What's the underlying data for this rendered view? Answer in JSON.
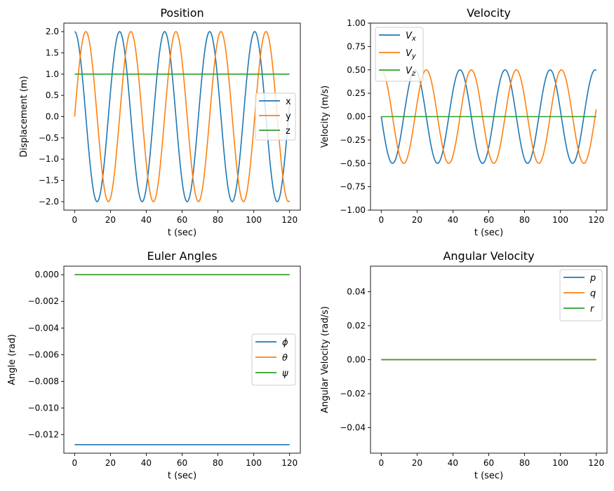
{
  "chart_data": [
    {
      "type": "line",
      "title": "Position",
      "xlabel": "t (sec)",
      "ylabel": "Displacement (m)",
      "xlim": [
        -6,
        126
      ],
      "ylim": [
        -2.2,
        2.2
      ],
      "xticks": [
        0,
        20,
        40,
        60,
        80,
        100,
        120
      ],
      "yticks": [
        -2.0,
        -1.5,
        -1.0,
        -0.5,
        0.0,
        0.5,
        1.0,
        1.5,
        2.0
      ],
      "ytick_labels": [
        "−2.0",
        "−1.5",
        "−1.0",
        "−0.5",
        "0.0",
        "0.5",
        "1.0",
        "1.5",
        "2.0"
      ],
      "grid": false,
      "legend_position": "center-right",
      "series": [
        {
          "name": "x",
          "color": "#1f77b4",
          "formula": "2*cos(w*t)",
          "angular_frequency_rad_per_s": 0.25,
          "t_range": [
            0,
            120
          ]
        },
        {
          "name": "y",
          "color": "#ff7f0e",
          "formula": "2*sin(w*t)",
          "angular_frequency_rad_per_s": 0.25,
          "t_range": [
            0,
            120
          ]
        },
        {
          "name": "z",
          "color": "#2ca02c",
          "formula": "1",
          "t_range": [
            0,
            120
          ]
        }
      ]
    },
    {
      "type": "line",
      "title": "Velocity",
      "xlabel": "t (sec)",
      "ylabel": "Velocity (m/s)",
      "xlim": [
        -6,
        126
      ],
      "ylim": [
        -1.0,
        1.0
      ],
      "xticks": [
        0,
        20,
        40,
        60,
        80,
        100,
        120
      ],
      "yticks": [
        -1.0,
        -0.75,
        -0.5,
        -0.25,
        0.0,
        0.25,
        0.5,
        0.75,
        1.0
      ],
      "ytick_labels": [
        "−1.00",
        "−0.75",
        "−0.50",
        "−0.25",
        "0.00",
        "0.25",
        "0.50",
        "0.75",
        "1.00"
      ],
      "grid": false,
      "legend_position": "upper-left",
      "series": [
        {
          "name": "V",
          "subscript": "x",
          "color": "#1f77b4",
          "formula": "-0.5*sin(w*t)",
          "angular_frequency_rad_per_s": 0.25,
          "t_range": [
            0,
            120
          ]
        },
        {
          "name": "V",
          "subscript": "y",
          "color": "#ff7f0e",
          "formula": "0.5*cos(w*t)",
          "angular_frequency_rad_per_s": 0.25,
          "t_range": [
            0,
            120
          ]
        },
        {
          "name": "V",
          "subscript": "z",
          "color": "#2ca02c",
          "formula": "0",
          "t_range": [
            0,
            120
          ]
        }
      ]
    },
    {
      "type": "line",
      "title": "Euler Angles",
      "xlabel": "t (sec)",
      "ylabel": "Angle (rad)",
      "xlim": [
        -6,
        126
      ],
      "ylim": [
        -0.01339,
        0.00064
      ],
      "xticks": [
        0,
        20,
        40,
        60,
        80,
        100,
        120
      ],
      "yticks": [
        -0.012,
        -0.01,
        -0.008,
        -0.006,
        -0.004,
        -0.002,
        0.0
      ],
      "ytick_labels": [
        "−0.012",
        "−0.010",
        "−0.008",
        "−0.006",
        "−0.004",
        "−0.002",
        "0.000"
      ],
      "grid": false,
      "legend_position": "center-right",
      "series": [
        {
          "name": "ϕ",
          "color": "#1f77b4",
          "formula": "-0.01275",
          "t_range": [
            0,
            120
          ]
        },
        {
          "name": "θ",
          "color": "#ff7f0e",
          "formula": "0",
          "t_range": [
            0,
            120
          ]
        },
        {
          "name": "ψ",
          "color": "#2ca02c",
          "formula": "0",
          "t_range": [
            0,
            120
          ]
        }
      ]
    },
    {
      "type": "line",
      "title": "Angular Velocity",
      "xlabel": "t (sec)",
      "ylabel": "Angular Velocity (rad/s)",
      "xlim": [
        -6,
        126
      ],
      "ylim": [
        -0.055,
        0.055
      ],
      "xticks": [
        0,
        20,
        40,
        60,
        80,
        100,
        120
      ],
      "yticks": [
        -0.04,
        -0.02,
        0.0,
        0.02,
        0.04
      ],
      "ytick_labels": [
        "−0.04",
        "−0.02",
        "0.00",
        "0.02",
        "0.04"
      ],
      "grid": false,
      "legend_position": "upper-right",
      "series": [
        {
          "name": "p",
          "color": "#1f77b4",
          "formula": "0",
          "t_range": [
            0,
            120
          ]
        },
        {
          "name": "q",
          "color": "#ff7f0e",
          "formula": "0",
          "t_range": [
            0,
            120
          ]
        },
        {
          "name": "r",
          "color": "#2ca02c",
          "formula": "0",
          "t_range": [
            0,
            120
          ]
        }
      ]
    }
  ]
}
